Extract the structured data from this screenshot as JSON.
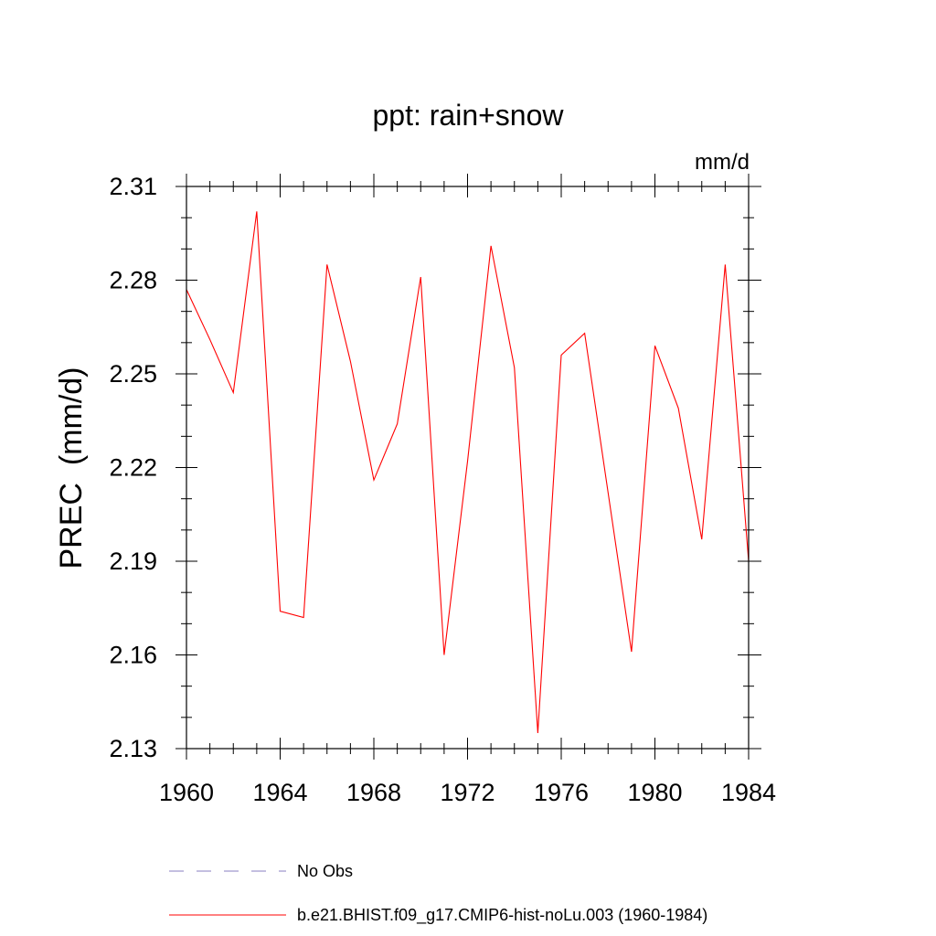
{
  "chart_data": {
    "type": "line",
    "title": "ppt: rain+snow",
    "units": "mm/d",
    "xlabel": "",
    "ylabel": "PREC  (mm/d)",
    "xlim": [
      1960,
      1984
    ],
    "ylim": [
      2.13,
      2.31
    ],
    "xticks": [
      1960,
      1964,
      1968,
      1972,
      1976,
      1980,
      1984
    ],
    "xtick_labels": [
      "1960",
      "1964",
      "1968",
      "1972",
      "1976",
      "1980",
      "1984"
    ],
    "yticks": [
      2.13,
      2.16,
      2.19,
      2.22,
      2.25,
      2.28,
      2.31
    ],
    "ytick_labels": [
      "2.13",
      "2.16",
      "2.19",
      "2.22",
      "2.25",
      "2.28",
      "2.31"
    ],
    "grid": false,
    "legend_position": "bottom",
    "series": [
      {
        "name": "b.e21.BHIST.f09_g17.CMIP6-hist-noLu.003 (1960-1984)",
        "color": "#ff0000",
        "style": "solid",
        "x": [
          1960,
          1961,
          1962,
          1963,
          1964,
          1965,
          1966,
          1967,
          1968,
          1969,
          1970,
          1971,
          1972,
          1973,
          1974,
          1975,
          1976,
          1977,
          1978,
          1979,
          1980,
          1981,
          1982,
          1983,
          1984
        ],
        "values": [
          2.277,
          2.261,
          2.244,
          2.302,
          2.174,
          2.172,
          2.285,
          2.254,
          2.216,
          2.234,
          2.281,
          2.16,
          2.222,
          2.291,
          2.252,
          2.135,
          2.256,
          2.263,
          2.212,
          2.161,
          2.259,
          2.239,
          2.197,
          2.285,
          2.19
        ]
      }
    ],
    "legend": [
      {
        "label": "No Obs",
        "color": "#8a7fc0",
        "style": "dashed"
      },
      {
        "label": "b.e21.BHIST.f09_g17.CMIP6-hist-noLu.003 (1960-1984)",
        "color": "#ff0000",
        "style": "solid"
      }
    ]
  }
}
